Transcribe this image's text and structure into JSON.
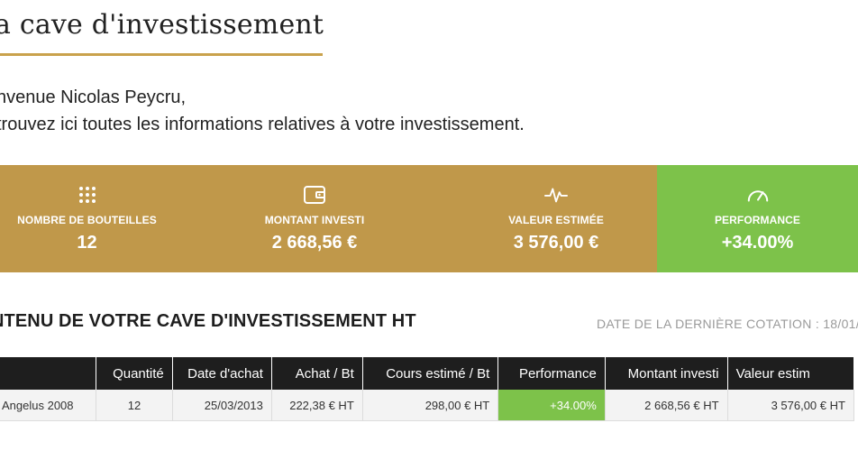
{
  "header": {
    "title": "a cave d'investissement",
    "welcome_line1": "nvenue Nicolas Peycru,",
    "welcome_line2": "trouvez ici toutes les informations relatives à votre investissement."
  },
  "stats": [
    {
      "icon": "grid-dots-icon",
      "label": "NOMBRE DE BOUTEILLES",
      "value": "12"
    },
    {
      "icon": "wallet-icon",
      "label": "MONTANT INVESTI",
      "value": "2 668,56 €"
    },
    {
      "icon": "pulse-icon",
      "label": "VALEUR ESTIMÉE",
      "value": "3 576,00 €"
    },
    {
      "icon": "speedometer-icon",
      "label": "PERFORMANCE",
      "value": "+34.00%"
    }
  ],
  "colors": {
    "gold": "#c0984a",
    "green": "#7dc24a",
    "dark": "#1e1e1e",
    "underline": "#c9a24c"
  },
  "section": {
    "title": "NTENU DE VOTRE CAVE D'INVESTISSEMENT HT",
    "cotation": "DATE DE LA DERNIÈRE COTATION : 18/01/2"
  },
  "table": {
    "headers": [
      "",
      "Quantité",
      "Date d'achat",
      "Achat / Bt",
      "Cours estimé / Bt",
      "Performance",
      "Montant investi",
      "Valeur estim"
    ],
    "rows": [
      [
        "Angelus 2008",
        "12",
        "25/03/2013",
        "222,38 € HT",
        "298,00 € HT",
        "+34.00%",
        "2 668,56 € HT",
        "3 576,00 € HT"
      ]
    ]
  }
}
